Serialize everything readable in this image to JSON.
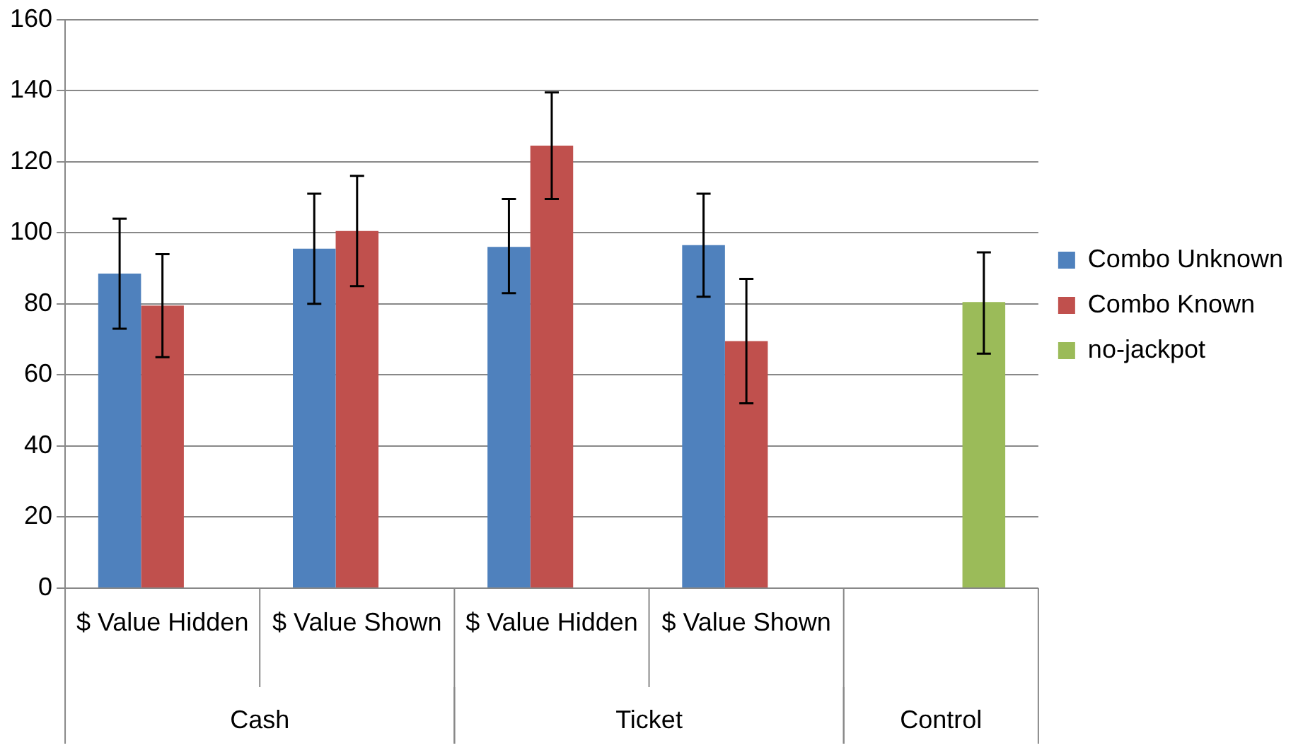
{
  "chart_data": {
    "type": "bar",
    "categories": [
      "$ Value Hidden",
      "$ Value Shown",
      "$ Value Hidden",
      "$ Value Shown",
      null
    ],
    "annotations": [
      "Cash",
      "Ticket",
      "Control"
    ],
    "series": [
      {
        "name": "Combo Unknown",
        "color": "#4f81bd",
        "values": [
          88.5,
          95.5,
          96,
          96.5,
          null
        ],
        "errors": [
          [
            73,
            104
          ],
          [
            80,
            111
          ],
          [
            83,
            109.5
          ],
          [
            82,
            111
          ],
          null
        ]
      },
      {
        "name": "Combo Known",
        "color": "#c0504d",
        "values": [
          79.5,
          100.5,
          124.5,
          69.5,
          null
        ],
        "errors": [
          [
            65,
            94
          ],
          [
            85,
            116
          ],
          [
            109.5,
            139.5
          ],
          [
            52,
            87
          ],
          null
        ]
      },
      {
        "name": "no-jackpot",
        "color": "#9bbb59",
        "values": [
          null,
          null,
          null,
          null,
          80.5
        ],
        "errors": [
          null,
          null,
          null,
          null,
          [
            66,
            94.5
          ]
        ]
      }
    ],
    "ylim": [
      0,
      160
    ],
    "yticks": [
      0,
      20,
      40,
      60,
      80,
      100,
      120,
      140,
      160
    ],
    "grid": "y",
    "legend": "right"
  }
}
